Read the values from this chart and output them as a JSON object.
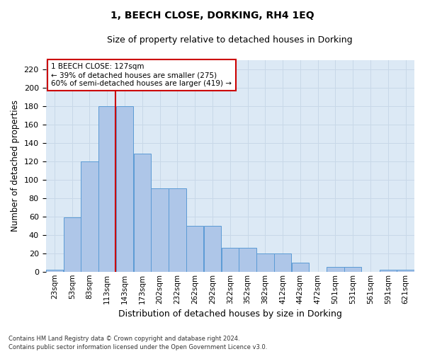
{
  "title": "1, BEECH CLOSE, DORKING, RH4 1EQ",
  "subtitle": "Size of property relative to detached houses in Dorking",
  "xlabel": "Distribution of detached houses by size in Dorking",
  "ylabel": "Number of detached properties",
  "bar_labels": [
    "23sqm",
    "53sqm",
    "83sqm",
    "113sqm",
    "143sqm",
    "173sqm",
    "202sqm",
    "232sqm",
    "262sqm",
    "292sqm",
    "322sqm",
    "352sqm",
    "382sqm",
    "412sqm",
    "442sqm",
    "472sqm",
    "501sqm",
    "531sqm",
    "561sqm",
    "591sqm",
    "621sqm"
  ],
  "bar_heights": [
    2,
    59,
    120,
    180,
    180,
    128,
    91,
    91,
    50,
    50,
    26,
    26,
    20,
    20,
    10,
    0,
    5,
    5,
    0,
    2,
    2
  ],
  "bar_color": "#aec6e8",
  "bar_edge_color": "#5b9bd5",
  "annotation_text": "1 BEECH CLOSE: 127sqm\n← 39% of detached houses are smaller (275)\n60% of semi-detached houses are larger (419) →",
  "annotation_box_color": "#ffffff",
  "annotation_border_color": "#cc0000",
  "vline_color": "#cc0000",
  "ylim": [
    0,
    230
  ],
  "yticks": [
    0,
    20,
    40,
    60,
    80,
    100,
    120,
    140,
    160,
    180,
    200,
    220
  ],
  "grid_color": "#c8d8e8",
  "bg_color": "#dce9f5",
  "footer": "Contains HM Land Registry data © Crown copyright and database right 2024.\nContains public sector information licensed under the Open Government Licence v3.0.",
  "property_sqm": 127,
  "bin_edges": [
    8,
    38,
    68,
    98,
    128,
    158,
    188,
    218,
    248,
    278,
    308,
    338,
    368,
    398,
    428,
    458,
    488,
    518,
    548,
    578,
    608,
    638
  ]
}
